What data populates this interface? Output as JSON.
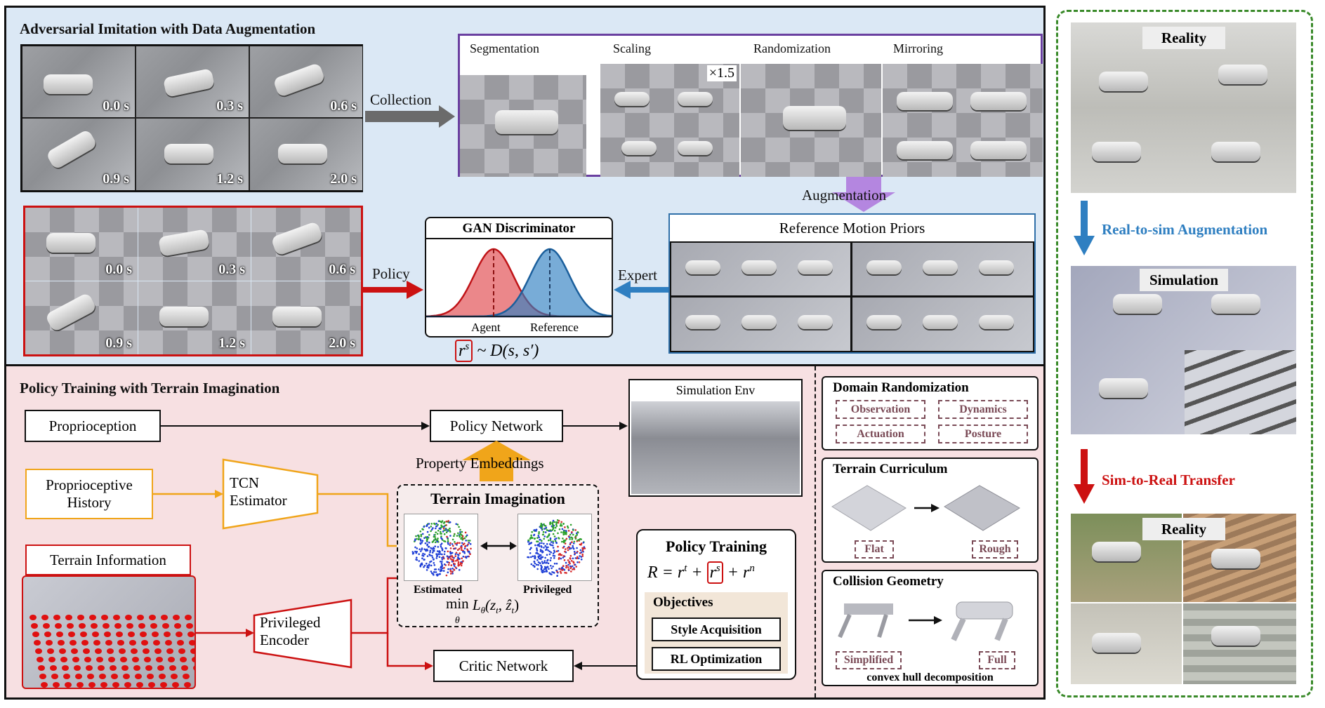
{
  "top_section": {
    "title": "Adversarial Imitation with Data Augmentation",
    "real_frames": [
      "0.0 s",
      "0.3 s",
      "0.6 s",
      "0.9 s",
      "1.2 s",
      "2.0 s"
    ],
    "collection_label": "Collection",
    "augment_titles": [
      "Segmentation",
      "Scaling",
      "Randomization",
      "Mirroring"
    ],
    "scale_label": "×1.5",
    "augmentation_label": "Augmentation",
    "policy_frames": [
      "0.0 s",
      "0.3 s",
      "0.6 s",
      "0.9 s",
      "1.2 s",
      "2.0 s"
    ],
    "policy_label": "Policy",
    "gan_title": "GAN Discriminator",
    "gan_agent": "Agent",
    "gan_reference": "Reference",
    "reward_formula_r": "r",
    "reward_formula_s": "s",
    "reward_formula_rest": "~ D(s, s′)",
    "expert_label": "Expert",
    "ref_title": "Reference Motion Priors",
    "colors": {
      "agent": "#e0474c",
      "reference": "#2f7fc1",
      "policy_arrow": "#cc1111",
      "expert_arrow": "#2f7fc1",
      "purple": "#7a4aa8",
      "augment_arrow": "#b486e0"
    }
  },
  "bottom_section": {
    "title": "Policy Training with Terrain Imagination",
    "proprioception": "Proprioception",
    "policy_network": "Policy Network",
    "sim_env": "Simulation Env",
    "property_embeddings": "Property Embeddings",
    "proprio_history_line1": "Proprioceptive",
    "proprio_history_line2": "History",
    "tcn_line1": "TCN",
    "tcn_line2": "Estimator",
    "terrain_imagination": "Terrain Imagination",
    "estimated": "Estimated",
    "privileged": "Privileged",
    "loss_min": "min",
    "loss_theta": "θ",
    "loss_body": "L",
    "loss_sub": "θ",
    "loss_args": "(z",
    "loss_args_t": "t",
    "loss_args_mid": ", ẑ",
    "loss_args_t2": "t",
    "loss_args_end": ")",
    "terrain_information": "Terrain Information",
    "priv_encoder_line1": "Privileged",
    "priv_encoder_line2": "Encoder",
    "critic_network": "Critic Network",
    "policy_training": "Policy Training",
    "reward_lhs": "R = r",
    "reward_t": "t",
    "reward_plus": " + ",
    "reward_r": "r",
    "reward_s": "s",
    "reward_plus2": " + r",
    "reward_n": "n",
    "objectives": "Objectives",
    "style_acquisition": "Style Acquisition",
    "rl_optimization": "RL Optimization",
    "colors": {
      "history": "#f0a51a",
      "privileged": "#cc1111"
    }
  },
  "right_boxes": {
    "domain_randomization": "Domain Randomization",
    "dr_tags": [
      "Observation",
      "Dynamics",
      "Actuation",
      "Posture"
    ],
    "terrain_curriculum": "Terrain Curriculum",
    "tc_tags": [
      "Flat",
      "Rough"
    ],
    "collision_geometry": "Collision Geometry",
    "cg_tags": [
      "Simplified",
      "Full"
    ],
    "cg_caption": "convex hull decomposition"
  },
  "far_right": {
    "reality_top": "Reality",
    "real_to_sim": "Real-to-sim Augmentation",
    "simulation": "Simulation",
    "sim_to_real": "Sim-to-Real Transfer",
    "reality_bottom": "Reality",
    "colors": {
      "real_to_sim": "#2f7fc1",
      "sim_to_real": "#cc1111",
      "border": "#3a8a2a"
    }
  }
}
